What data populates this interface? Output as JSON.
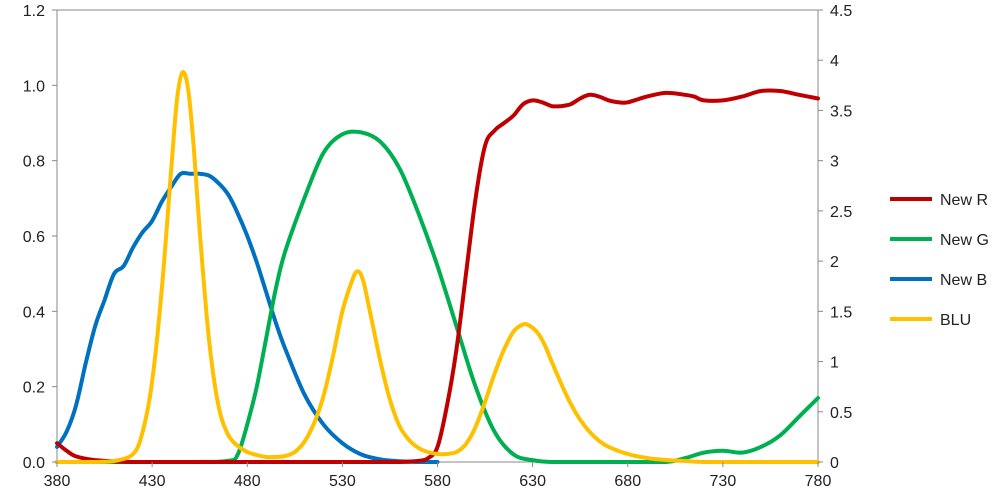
{
  "chart_data": {
    "type": "line",
    "x_ticks": [
      "380",
      "430",
      "480",
      "530",
      "580",
      "630",
      "680",
      "730",
      "780"
    ],
    "y_left_ticks": [
      "0.0",
      "0.2",
      "0.4",
      "0.6",
      "0.8",
      "1.0",
      "1.2"
    ],
    "y_right_ticks": [
      "0",
      "0.5",
      "1",
      "1.5",
      "2",
      "2.5",
      "3",
      "3.5",
      "4",
      "4.5"
    ],
    "xlim": [
      380,
      780
    ],
    "ylim_left": [
      0,
      1.2
    ],
    "ylim_right": [
      0,
      4.5
    ],
    "grid": false,
    "legend_position": "right",
    "series": [
      {
        "name": "New R",
        "color": "#c00000",
        "axis": "left",
        "x": [
          380,
          385,
          390,
          400,
          420,
          440,
          460,
          480,
          500,
          520,
          540,
          560,
          570,
          575,
          580,
          585,
          590,
          595,
          600,
          605,
          610,
          615,
          620,
          625,
          630,
          635,
          640,
          645,
          650,
          655,
          660,
          665,
          670,
          675,
          680,
          690,
          700,
          710,
          715,
          720,
          730,
          740,
          750,
          760,
          770,
          780
        ],
        "y": [
          0.05,
          0.03,
          0.015,
          0.005,
          0.0,
          0.0,
          0.0,
          0.0,
          0.0,
          0.0,
          0.0,
          0.0,
          0.003,
          0.01,
          0.04,
          0.15,
          0.3,
          0.5,
          0.7,
          0.84,
          0.88,
          0.9,
          0.92,
          0.95,
          0.96,
          0.955,
          0.945,
          0.945,
          0.95,
          0.965,
          0.975,
          0.97,
          0.96,
          0.955,
          0.955,
          0.97,
          0.98,
          0.975,
          0.97,
          0.96,
          0.96,
          0.97,
          0.985,
          0.985,
          0.975,
          0.965
        ]
      },
      {
        "name": "New G",
        "color": "#00b050",
        "axis": "left",
        "x": [
          380,
          450,
          470,
          475,
          480,
          485,
          490,
          495,
          500,
          510,
          520,
          530,
          540,
          550,
          560,
          570,
          580,
          590,
          600,
          610,
          620,
          630,
          640,
          660,
          680,
          700,
          710,
          720,
          730,
          740,
          750,
          760,
          770,
          780
        ],
        "y": [
          0.0,
          0.0,
          0.003,
          0.02,
          0.1,
          0.2,
          0.33,
          0.46,
          0.56,
          0.7,
          0.82,
          0.87,
          0.875,
          0.85,
          0.78,
          0.66,
          0.52,
          0.36,
          0.2,
          0.08,
          0.02,
          0.005,
          0.0,
          0.0,
          0.0,
          0.0,
          0.01,
          0.025,
          0.03,
          0.025,
          0.04,
          0.07,
          0.12,
          0.17
        ]
      },
      {
        "name": "New B",
        "color": "#0070c0",
        "axis": "left",
        "x": [
          380,
          385,
          390,
          395,
          400,
          405,
          410,
          415,
          420,
          425,
          430,
          435,
          440,
          445,
          450,
          455,
          460,
          465,
          470,
          475,
          480,
          485,
          490,
          495,
          500,
          510,
          520,
          530,
          540,
          550,
          560,
          570,
          580
        ],
        "y": [
          0.04,
          0.08,
          0.15,
          0.26,
          0.36,
          0.43,
          0.5,
          0.52,
          0.57,
          0.61,
          0.64,
          0.69,
          0.73,
          0.765,
          0.765,
          0.765,
          0.76,
          0.74,
          0.71,
          0.66,
          0.6,
          0.53,
          0.45,
          0.37,
          0.3,
          0.18,
          0.1,
          0.05,
          0.02,
          0.007,
          0.002,
          0.0,
          0.0
        ]
      },
      {
        "name": "BLU",
        "color": "#ffc000",
        "axis": "right",
        "x": [
          380,
          400,
          410,
          420,
          425,
          430,
          435,
          440,
          443,
          446,
          449,
          452,
          455,
          460,
          465,
          470,
          475,
          480,
          485,
          490,
          495,
          500,
          505,
          510,
          515,
          520,
          525,
          530,
          535,
          538,
          541,
          545,
          550,
          555,
          560,
          565,
          570,
          575,
          580,
          585,
          590,
          595,
          600,
          605,
          610,
          615,
          620,
          625,
          628,
          632,
          636,
          640,
          645,
          650,
          655,
          660,
          665,
          670,
          680,
          690,
          700,
          710,
          720,
          740,
          760,
          780
        ],
        "y": [
          0.0,
          0.0,
          0.01,
          0.08,
          0.3,
          0.8,
          1.7,
          2.9,
          3.6,
          3.88,
          3.7,
          3.1,
          2.3,
          1.2,
          0.55,
          0.27,
          0.16,
          0.1,
          0.07,
          0.05,
          0.05,
          0.06,
          0.1,
          0.2,
          0.38,
          0.65,
          1.05,
          1.5,
          1.8,
          1.9,
          1.8,
          1.45,
          1.0,
          0.62,
          0.36,
          0.22,
          0.14,
          0.1,
          0.08,
          0.08,
          0.1,
          0.18,
          0.35,
          0.6,
          0.88,
          1.12,
          1.3,
          1.37,
          1.36,
          1.3,
          1.18,
          1.0,
          0.78,
          0.58,
          0.42,
          0.3,
          0.21,
          0.15,
          0.08,
          0.04,
          0.02,
          0.01,
          0.0,
          0.0,
          0.0,
          0.0
        ]
      }
    ]
  }
}
